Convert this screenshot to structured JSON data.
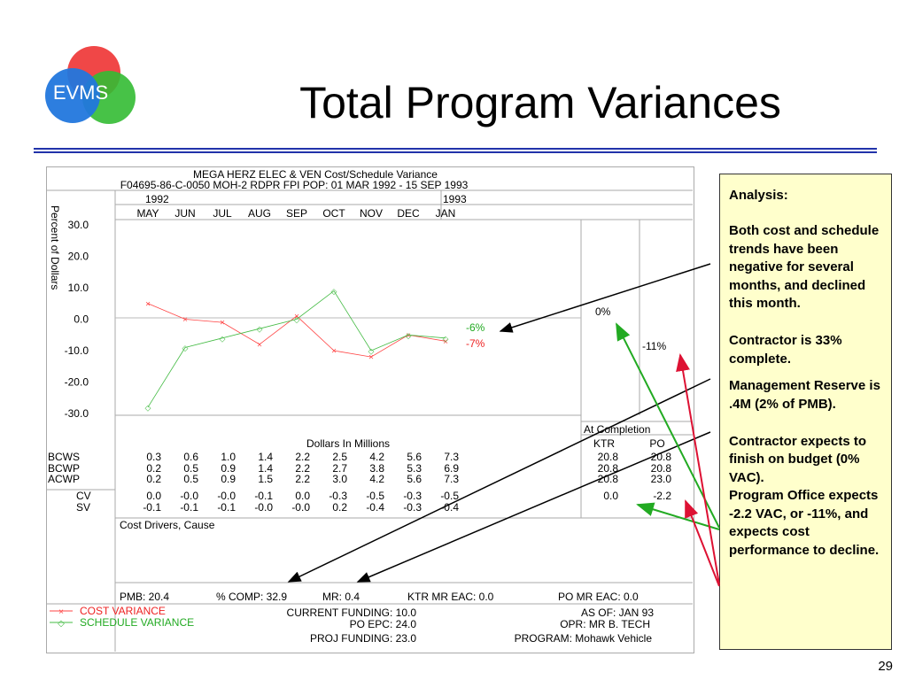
{
  "slide": {
    "title": "Total Program Variances",
    "logo_text": "EVMS",
    "page_number": "29"
  },
  "report": {
    "header_line1": "MEGA HERZ ELEC & VEN Cost/Schedule Variance",
    "header_line2": "F04695-86-C-0050 MOH-2 RDPR FPI  POP: 01 MAR 1992 - 15 SEP 1993",
    "year1": "1992",
    "year2": "1993",
    "months": [
      "MAY",
      "JUN",
      "JUL",
      "AUG",
      "SEP",
      "OCT",
      "NOV",
      "DEC",
      "JAN"
    ],
    "y_axis_label": "Percent of Dollars",
    "end_labels": {
      "sv": "-6%",
      "cv": "-7%",
      "ktr": "0%",
      "po": "-11%"
    },
    "at_completion": "At Completion",
    "dollars_label": "Dollars In Millions",
    "ktr_label": "KTR",
    "po_label": "PO",
    "rows": [
      {
        "label": "BCWS",
        "values": [
          "0.3",
          "0.6",
          "1.0",
          "1.4",
          "2.2",
          "2.5",
          "4.2",
          "5.6",
          "7.3"
        ],
        "ktr": "20.8",
        "po": "20.8"
      },
      {
        "label": "BCWP",
        "values": [
          "0.2",
          "0.5",
          "0.9",
          "1.4",
          "2.2",
          "2.7",
          "3.8",
          "5.3",
          "6.9"
        ],
        "ktr": "20.8",
        "po": "20.8"
      },
      {
        "label": "ACWP",
        "values": [
          "0.2",
          "0.5",
          "0.9",
          "1.5",
          "2.2",
          "3.0",
          "4.2",
          "5.6",
          "7.3"
        ],
        "ktr": "20.8",
        "po": "23.0"
      },
      {
        "label": "CV",
        "values": [
          "0.0",
          "-0.0",
          "-0.0",
          "-0.1",
          "0.0",
          "-0.3",
          "-0.5",
          "-0.3",
          "-0.5"
        ],
        "ktr": "0.0",
        "po": "-2.2"
      },
      {
        "label": "SV",
        "values": [
          "-0.1",
          "-0.1",
          "-0.1",
          "-0.0",
          "-0.0",
          "0.2",
          "-0.4",
          "-0.3",
          "-0.4"
        ],
        "ktr": "",
        "po": ""
      }
    ],
    "cost_drivers": "Cost Drivers, Cause",
    "pmb": "PMB: 20.4",
    "pct_comp": "% COMP: 32.9",
    "mr": "MR: 0.4",
    "ktr_mr_eac": "KTR MR EAC: 0.0",
    "po_mr_eac": "PO MR EAC: 0.0",
    "legend_cv": "COST VARIANCE",
    "legend_sv": "SCHEDULE VARIANCE",
    "current_funding": "CURRENT FUNDING: 10.0",
    "po_epc": "PO EPC: 24.0",
    "proj_funding": "PROJ FUNDING: 23.0",
    "as_of": "AS OF: JAN 93",
    "opr": "OPR: MR B. TECH",
    "program": "PROGRAM: Mohawk Vehicle"
  },
  "analysis": {
    "heading": "Analysis:",
    "p1": "Both cost and schedule trends have been negative for several months, and declined this month.",
    "p2": "Contractor is 33% complete.",
    "p3": "Management Reserve is .4M (2% of PMB).",
    "p4": "Contractor expects to finish on budget (0% VAC).",
    "p5": "Program Office expects -2.2 VAC, or -11%, and expects cost performance to decline."
  },
  "colors": {
    "cost_variance": "#ff4444",
    "schedule_variance": "#44bb44",
    "title_rule": "#2233aa",
    "analysis_bg": "#ffffcc",
    "arrow_green": "#22aa22",
    "arrow_red": "#dd1133"
  },
  "chart_data": {
    "type": "line",
    "x": [
      "MAY",
      "JUN",
      "JUL",
      "AUG",
      "SEP",
      "OCT",
      "NOV",
      "DEC",
      "JAN"
    ],
    "y_ticks": [
      "30.0",
      "20.0",
      "10.0",
      "0.0",
      "-10.0",
      "-20.0",
      "-30.0"
    ],
    "ylim": [
      -30,
      30
    ],
    "ylabel": "Percent of Dollars",
    "series": [
      {
        "name": "COST VARIANCE",
        "color": "#ff4444",
        "values": [
          5,
          0,
          -1,
          -8,
          1,
          -10,
          -12,
          -5,
          -7
        ]
      },
      {
        "name": "SCHEDULE VARIANCE",
        "color": "#44bb44",
        "values": [
          -28,
          -9,
          -6,
          -3,
          0,
          9,
          -10,
          -5,
          -6
        ]
      }
    ]
  }
}
